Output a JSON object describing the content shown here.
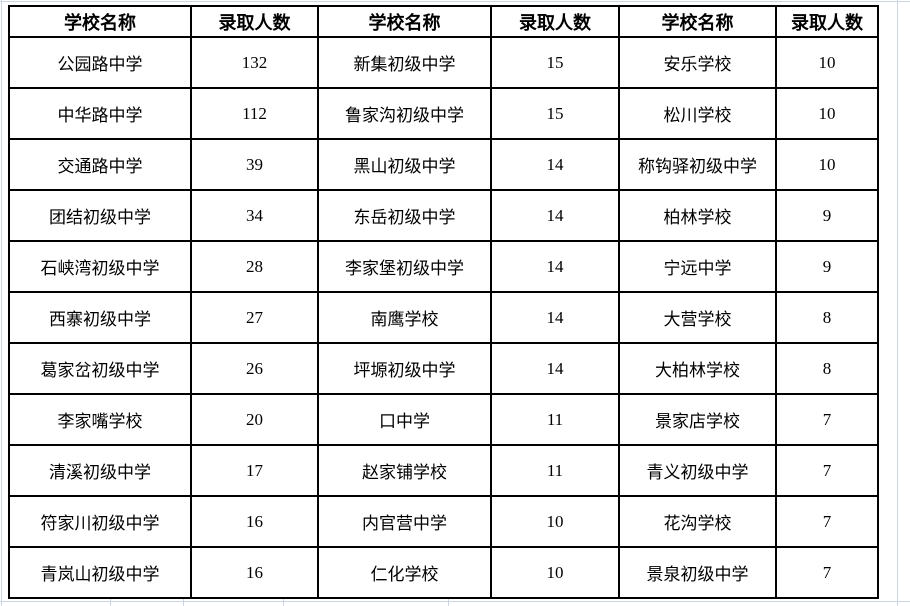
{
  "table": {
    "header_labels": [
      "学校名称",
      "录取人数",
      "学校名称",
      "录取人数",
      "学校名称",
      "录取人数"
    ],
    "rows": [
      [
        "公园路中学",
        "132",
        "新集初级中学",
        "15",
        "安乐学校",
        "10"
      ],
      [
        "中华路中学",
        "112",
        "鲁家沟初级中学",
        "15",
        "松川学校",
        "10"
      ],
      [
        "交通路中学",
        "39",
        "黑山初级中学",
        "14",
        "称钩驿初级中学",
        "10"
      ],
      [
        "团结初级中学",
        "34",
        "东岳初级中学",
        "14",
        "柏林学校",
        "9"
      ],
      [
        "石峡湾初级中学",
        "28",
        "李家堡初级中学",
        "14",
        "宁远中学",
        "9"
      ],
      [
        "西寨初级中学",
        "27",
        "南鹰学校",
        "14",
        "大营学校",
        "8"
      ],
      [
        "葛家岔初级中学",
        "26",
        "坪塬初级中学",
        "14",
        "大柏林学校",
        "8"
      ],
      [
        "李家嘴学校",
        "20",
        "口中学",
        "11",
        "景家店学校",
        "7"
      ],
      [
        "清溪初级中学",
        "17",
        "赵家铺学校",
        "11",
        "青义初级中学",
        "7"
      ],
      [
        "符家川初级中学",
        "16",
        "内官营中学",
        "10",
        "花沟学校",
        "7"
      ],
      [
        "青岚山初级中学",
        "16",
        "仁化学校",
        "10",
        "景泉初级中学",
        "7"
      ]
    ]
  },
  "colors": {
    "border": "#000000",
    "text": "#000000",
    "gridline": "#ccd4e2",
    "background": "#ffffff"
  }
}
